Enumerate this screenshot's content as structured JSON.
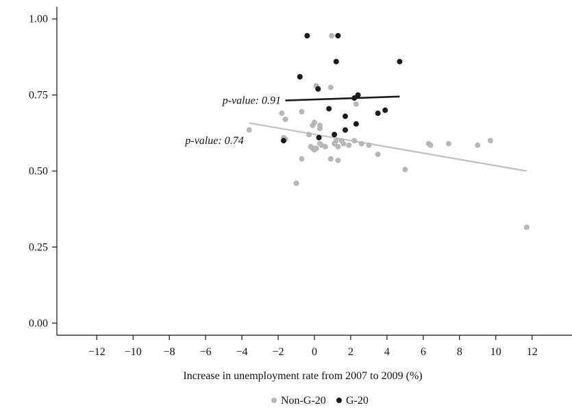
{
  "chart_data": {
    "type": "scatter",
    "title": "",
    "xlabel": "Increase in unemployment rate from 2007 to 2009 (%)",
    "ylabel": "",
    "xlim": [
      -14.2,
      14.2
    ],
    "ylim": [
      -0.04,
      1.04
    ],
    "xticks": [
      -12,
      -10,
      -8,
      -6,
      -4,
      -2,
      0,
      2,
      4,
      6,
      8,
      10,
      12
    ],
    "xtick_labels": [
      "−12",
      "−10",
      "−8",
      "−6",
      "−4",
      "−2",
      "0",
      "2",
      "4",
      "6",
      "8",
      "10",
      "12"
    ],
    "yticks": [
      0.0,
      0.25,
      0.5,
      0.75,
      1.0
    ],
    "ytick_labels": [
      "0.00",
      "0.25",
      "0.50",
      "0.75",
      "1.00"
    ],
    "grid": false,
    "legend_position": "bottom-center",
    "series": [
      {
        "name": "Non-G-20",
        "color": "#b7b7b7",
        "points": [
          [
            -3.6,
            0.635
          ],
          [
            -1.8,
            0.69
          ],
          [
            -1.7,
            0.61
          ],
          [
            -1.6,
            0.67
          ],
          [
            -1.6,
            0.605
          ],
          [
            -1.0,
            0.46
          ],
          [
            -0.7,
            0.695
          ],
          [
            -0.7,
            0.54
          ],
          [
            -0.3,
            0.62
          ],
          [
            -0.2,
            0.58
          ],
          [
            -0.1,
            0.65
          ],
          [
            -0.1,
            0.575
          ],
          [
            0.0,
            0.66
          ],
          [
            0.0,
            0.57
          ],
          [
            0.1,
            0.575
          ],
          [
            0.1,
            0.78
          ],
          [
            0.3,
            0.65
          ],
          [
            0.3,
            0.64
          ],
          [
            0.3,
            0.59
          ],
          [
            0.4,
            0.585
          ],
          [
            0.6,
            0.58
          ],
          [
            0.9,
            0.775
          ],
          [
            0.9,
            0.54
          ],
          [
            0.95,
            0.945
          ],
          [
            1.1,
            0.59
          ],
          [
            1.2,
            0.6
          ],
          [
            1.3,
            0.58
          ],
          [
            1.3,
            0.535
          ],
          [
            1.5,
            0.6
          ],
          [
            1.6,
            0.59
          ],
          [
            1.9,
            0.585
          ],
          [
            2.2,
            0.6
          ],
          [
            2.3,
            0.72
          ],
          [
            2.6,
            0.59
          ],
          [
            3.0,
            0.585
          ],
          [
            3.5,
            0.555
          ],
          [
            5.0,
            0.505
          ],
          [
            6.3,
            0.59
          ],
          [
            6.4,
            0.585
          ],
          [
            7.4,
            0.59
          ],
          [
            9.0,
            0.585
          ],
          [
            9.7,
            0.6
          ],
          [
            11.7,
            0.315
          ]
        ]
      },
      {
        "name": "G-20",
        "color": "#1a1a1a",
        "points": [
          [
            -1.7,
            0.6
          ],
          [
            -0.8,
            0.81
          ],
          [
            -0.4,
            0.945
          ],
          [
            0.2,
            0.77
          ],
          [
            0.25,
            0.61
          ],
          [
            0.8,
            0.705
          ],
          [
            1.1,
            0.62
          ],
          [
            1.2,
            0.86
          ],
          [
            1.3,
            0.945
          ],
          [
            1.7,
            0.68
          ],
          [
            1.7,
            0.635
          ],
          [
            2.2,
            0.74
          ],
          [
            2.3,
            0.655
          ],
          [
            2.4,
            0.75
          ],
          [
            3.5,
            0.69
          ],
          [
            3.9,
            0.7
          ],
          [
            4.7,
            0.86
          ]
        ]
      }
    ],
    "fit_lines": [
      {
        "series": "Non-G-20",
        "color": "#c4c4c4",
        "x": [
          -3.6,
          11.7
        ],
        "y": [
          0.658,
          0.5
        ]
      },
      {
        "series": "G-20",
        "color": "#1a1a1a",
        "x": [
          -1.6,
          4.7
        ],
        "y": [
          0.732,
          0.745
        ]
      }
    ],
    "annotations": [
      {
        "text": "p-value: 0.91",
        "x": -1.85,
        "y": 0.732
      },
      {
        "text": "p-value: 0.74",
        "x": -3.9,
        "y": 0.6
      }
    ]
  }
}
